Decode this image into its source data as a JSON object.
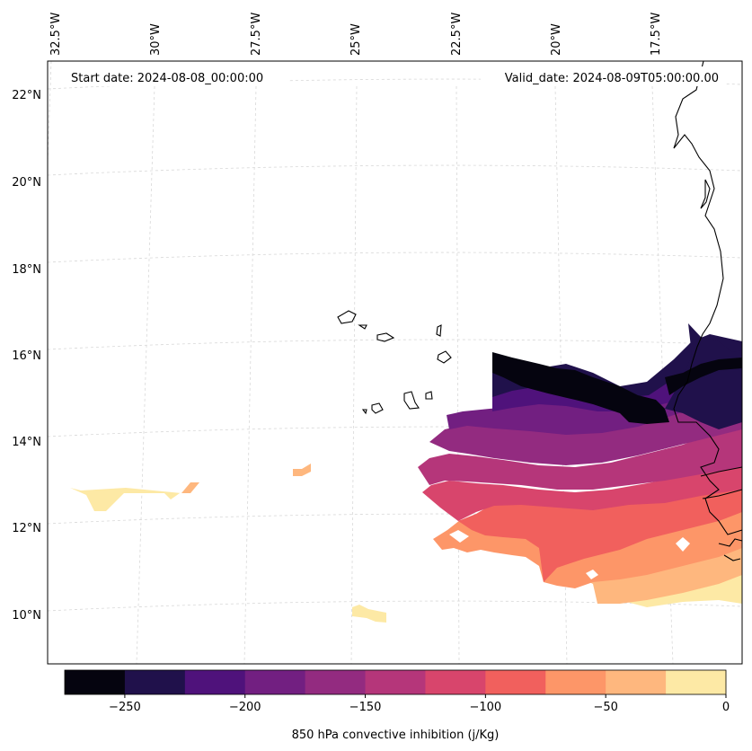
{
  "map": {
    "start_date_text": "Start date: 2024-08-08_00:00:00",
    "valid_date_text": "Valid_date: 2024-08-09T05:00:00.00",
    "longitude_labels": [
      "32.5°W",
      "30°W",
      "27.5°W",
      "25°W",
      "22.5°W",
      "20°W",
      "17.5°W"
    ],
    "latitude_labels": [
      "22°N",
      "20°N",
      "18°N",
      "16°N",
      "14°N",
      "12°N",
      "10°N"
    ],
    "variable": "850 hPa convective inhibition"
  },
  "colorbar": {
    "label": "850 hPa convective inhibition (j/Kg)",
    "tick_labels": [
      "−250",
      "−200",
      "−150",
      "−100",
      "−50",
      "0"
    ],
    "levels": [
      -275,
      -250,
      -225,
      -200,
      -175,
      -150,
      -125,
      -100,
      -75,
      -50,
      -25,
      0
    ],
    "colors": [
      "#05040f",
      "#20114b",
      "#4f127b",
      "#721f81",
      "#932b80",
      "#b5367a",
      "#d8456c",
      "#f1605d",
      "#fd9668",
      "#feb77e",
      "#fde9a5"
    ]
  },
  "colors": {
    "gridline": "#d3d3d3",
    "coastline": "#000000",
    "frame": "#000000"
  }
}
